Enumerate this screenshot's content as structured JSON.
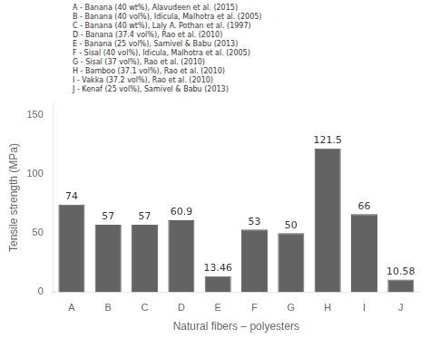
{
  "chart_data": {
    "type": "bar",
    "xlabel": "Natural fibers – polyesters",
    "ylabel": "Tensile strength (MPa)",
    "categories": [
      "A",
      "B",
      "C",
      "D",
      "E",
      "F",
      "G",
      "H",
      "I",
      "J"
    ],
    "values": [
      74,
      57,
      57,
      60.9,
      13.46,
      53,
      50,
      121.5,
      66,
      10.58
    ],
    "color": "#636363",
    "ylim": [
      0,
      160
    ],
    "yticks": [
      0,
      50,
      100,
      150
    ],
    "grid": false,
    "data_labels": true,
    "annotations": [
      "A - Banana (40 wt%), Alavudeen et al. (2015)",
      "B - Banana (40 vol%), Idicula, Malhotra et al. (2005)",
      "C - Banana (40 wt%), Laly A. Pothan et al. (1997)",
      "D - Banana (37.4 vol%), Rao et al. (2010)",
      "E - Banana (25 vol%), Samivel & Babu (2013)",
      "F - Sisal (40 vol%), Idicula, Malhotra et al. (2005)",
      "G - Sisal (37 vol%), Rao et al. (2010)",
      "H - Bamboo (37.1 vol%), Rao et al. (2010)",
      "I - Vakka (37.2 vol%), Rao et al. (2010)",
      "J - Kenaf (25 vol%), Samivel & Babu (2013)"
    ]
  }
}
